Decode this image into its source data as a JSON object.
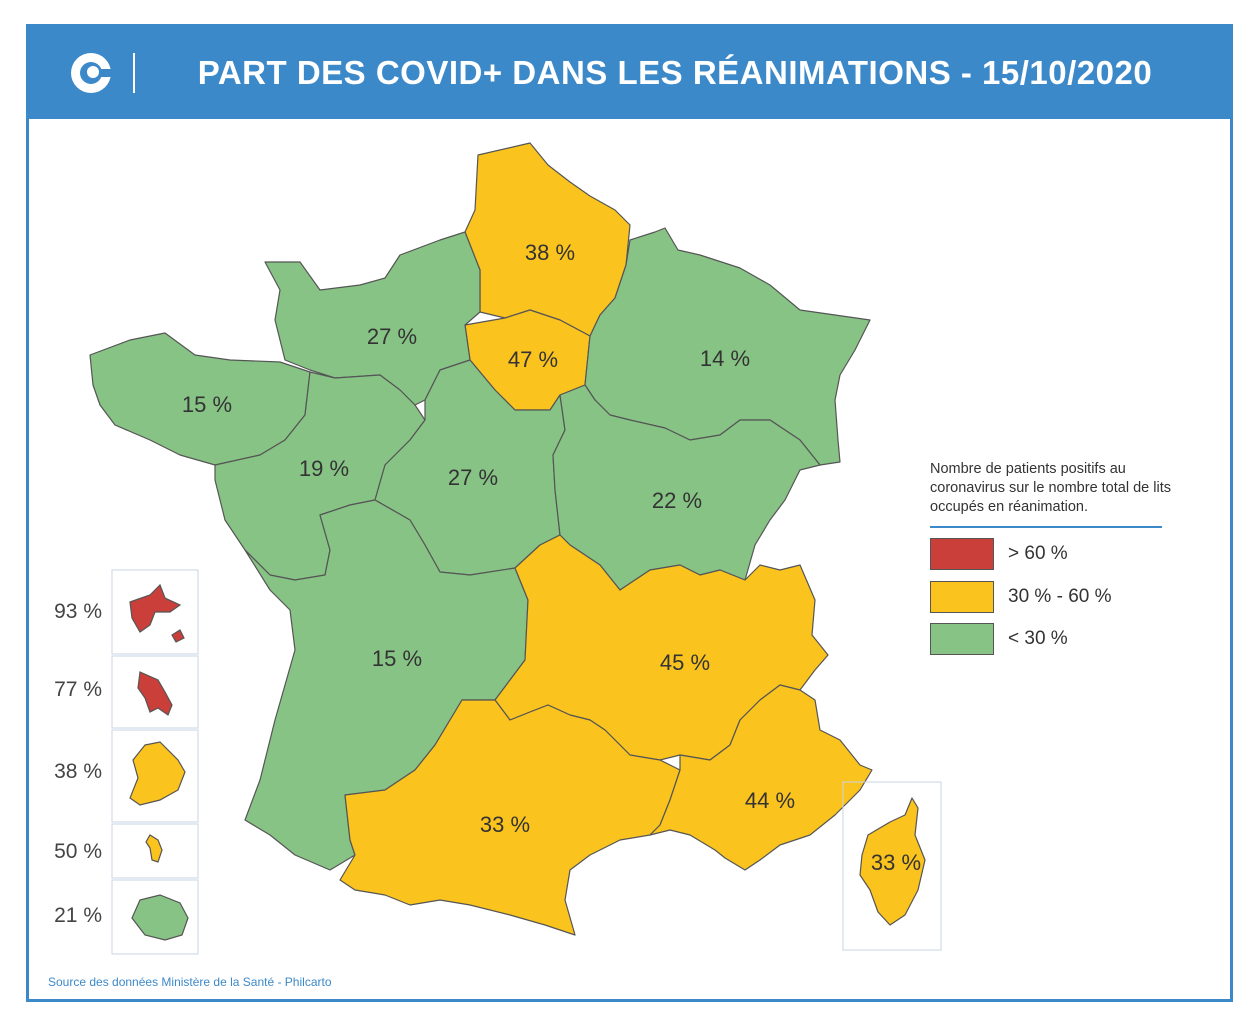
{
  "header": {
    "title": "PART DES COVID+ DANS LES RÉANIMATIONS - 15/10/2020"
  },
  "colors": {
    "header": "#3c89c9",
    "red": "#cb3f3a",
    "yellow": "#fbc31d",
    "green": "#87c385",
    "border": "#555555"
  },
  "regions": {
    "hauts_de_france": "38 %",
    "ile_de_france": "47 %",
    "grand_est": "14 %",
    "normandie": "27 %",
    "bretagne": "15 %",
    "pays_de_la_loire": "19 %",
    "centre_val_de_loire": "27 %",
    "bourgogne_franche_comte": "22 %",
    "nouvelle_aquitaine": "15 %",
    "auvergne_rhone_alpes": "45 %",
    "occitanie": "33 %",
    "paca": "44 %",
    "corse": "33 %"
  },
  "overseas": [
    {
      "id": "guadeloupe",
      "value": "93 %"
    },
    {
      "id": "martinique",
      "value": "77 %"
    },
    {
      "id": "guyane",
      "value": "38 %"
    },
    {
      "id": "mayotte",
      "value": "50 %"
    },
    {
      "id": "reunion",
      "value": "21 %"
    }
  ],
  "legend": {
    "description": "Nombre de patients positifs au coronavirus sur le nombre total de lits occupés en réanimation.",
    "items": [
      {
        "label": "> 60 %",
        "color": "#cb3f3a"
      },
      {
        "label": "30 % - 60 %",
        "color": "#fbc31d"
      },
      {
        "label": "< 30 %",
        "color": "#87c385"
      }
    ]
  },
  "source": "Source des données Ministère de la Santé - Philcarto"
}
